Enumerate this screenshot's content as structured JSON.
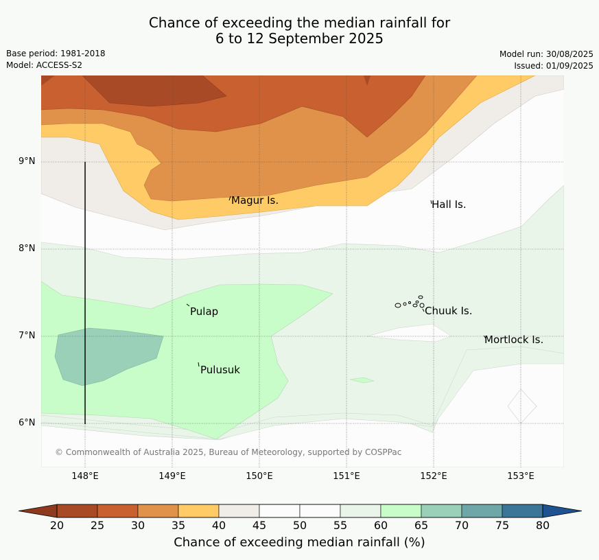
{
  "title": {
    "line1": "Chance of exceeding the median rainfall for",
    "line2": "6 to 12 September 2025"
  },
  "meta": {
    "base_period": "Base period: 1981-2018",
    "model": "Model: ACCESS-S2",
    "model_run": "Model run: 30/08/2025",
    "issued": "Issued: 01/09/2025"
  },
  "map": {
    "lat_labels": [
      "9°N",
      "8°N",
      "7°N",
      "6°N"
    ],
    "lon_labels": [
      "148°E",
      "149°E",
      "150°E",
      "151°E",
      "152°E",
      "153°E"
    ],
    "places": {
      "magur": "Magur Is.",
      "hall": "Hall Is.",
      "pulap": "Pulap",
      "chuuk": "Chuuk Is.",
      "mortlock": "Mortlock Is.",
      "pulusuk": "Pulusuk"
    },
    "copyright": "© Commonwealth of Australia 2025, Bureau of Meteorology, supported by COSPPac"
  },
  "colorbar": {
    "ticks": [
      "20",
      "25",
      "30",
      "35",
      "40",
      "45",
      "50",
      "55",
      "60",
      "65",
      "70",
      "75",
      "80"
    ],
    "colors": [
      "#a84a26",
      "#c8612f",
      "#e0924a",
      "#fecb66",
      "#f0ede8",
      "#fbfcfb",
      "#fbfcfb",
      "#eaf5ea",
      "#c8fcc8",
      "#9ad0b8",
      "#6fa6a8",
      "#3b7698"
    ],
    "under_color": "#8e3a1e",
    "over_color": "#1e5390",
    "label": "Chance of exceeding median rainfall (%)"
  }
}
